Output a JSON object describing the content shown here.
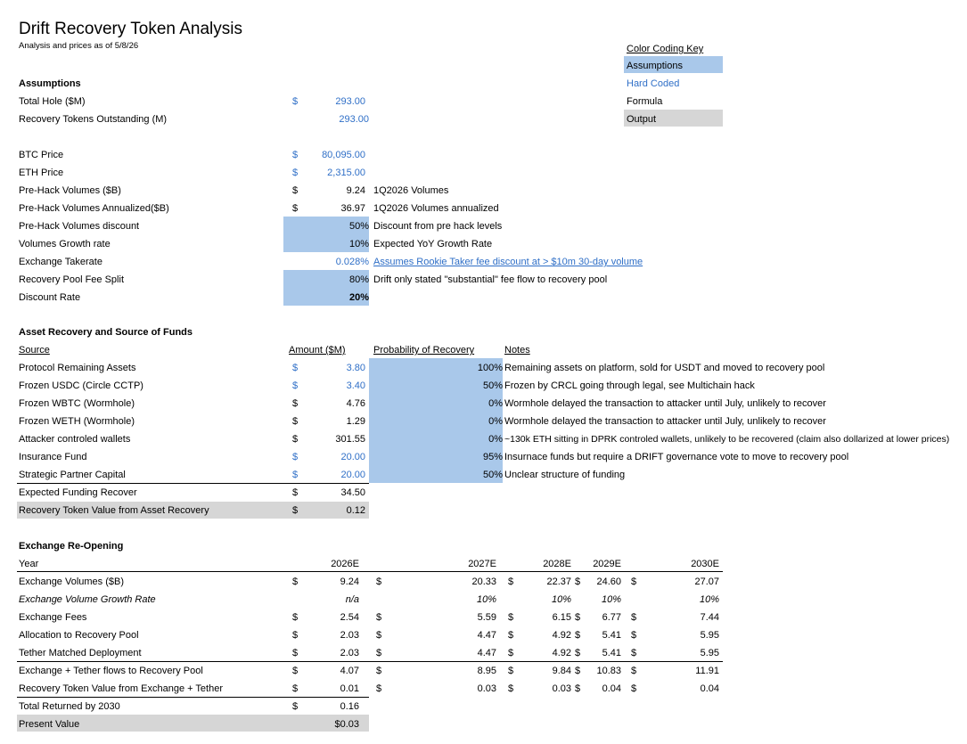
{
  "header": {
    "title": "Drift Recovery Token Analysis",
    "subtitle": "Analysis and prices as of 5/8/26"
  },
  "key": {
    "title": "Color Coding Key",
    "assumptions": "Assumptions",
    "hardcoded": "Hard Coded",
    "formula": "Formula",
    "output": "Output",
    "colors": {
      "assumption_fill": "#a9c8ea",
      "hardcoded_text": "#2f6fc7",
      "output_fill": "#d6d6d6"
    }
  },
  "assumptions": {
    "heading": "Assumptions",
    "rows": [
      {
        "label": "Total Hole ($M)",
        "cur": "$",
        "value": "293.00",
        "note": ""
      },
      {
        "label": "Recovery Tokens Outstanding (M)",
        "cur": "",
        "value": "293.00",
        "note": ""
      },
      {
        "label": "BTC Price",
        "cur": "$",
        "value": "80,095.00",
        "note": ""
      },
      {
        "label": "ETH Price",
        "cur": "$",
        "value": "2,315.00",
        "note": ""
      },
      {
        "label": "Pre-Hack Volumes ($B)",
        "cur": "$",
        "value": "9.24",
        "note": "1Q2026 Volumes"
      },
      {
        "label": "Pre-Hack Volumes Annualized($B)",
        "cur": "$",
        "value": "36.97",
        "note": "1Q2026 Volumes annualized"
      },
      {
        "label": "Pre-Hack Volumes discount",
        "cur": "",
        "value": "50%",
        "note": "Discount from pre hack levels"
      },
      {
        "label": "Volumes Growth rate",
        "cur": "",
        "value": "10%",
        "note": "Expected YoY Growth Rate"
      },
      {
        "label": "Exchange Takerate",
        "cur": "",
        "value": "0.028%",
        "note": "Assumes Rookie Taker fee discount at > $10m 30-day volume"
      },
      {
        "label": "Recovery Pool Fee Split",
        "cur": "",
        "value": "80%",
        "note": "Drift only stated \"substantial\" fee flow to recovery pool"
      },
      {
        "label": "Discount Rate",
        "cur": "",
        "value": "20%",
        "note": ""
      }
    ]
  },
  "recovery": {
    "heading": "Asset Recovery and Source of Funds",
    "columns": {
      "source": "Source",
      "amount": "Amount ($M)",
      "prob": "Probability of Recovery",
      "notes": "Notes"
    },
    "rows": [
      {
        "source": "Protocol Remaining Assets",
        "cur": "$",
        "amount": "3.80",
        "prob": "100%",
        "note": "Remaining assets on platform, sold for USDT and moved to recovery pool"
      },
      {
        "source": "Frozen USDC (Circle CCTP)",
        "cur": "$",
        "amount": "3.40",
        "prob": "50%",
        "note": "Frozen by CRCL going through legal, see Multichain hack"
      },
      {
        "source": "Frozen WBTC (Wormhole)",
        "cur": "$",
        "amount": "4.76",
        "prob": "0%",
        "note": "Wormhole delayed the transaction to attacker until July, unlikely to recover"
      },
      {
        "source": "Frozen WETH (Wormhole)",
        "cur": "$",
        "amount": "1.29",
        "prob": "0%",
        "note": "Wormhole delayed the transaction to attacker until July, unlikely to recover"
      },
      {
        "source": "Attacker controled wallets",
        "cur": "$",
        "amount": "301.55",
        "prob": "0%",
        "note": "~130k ETH sitting in DPRK controled wallets, unlikely to be recovered (claim also dollarized at lower prices)"
      },
      {
        "source": "Insurance Fund",
        "cur": "$",
        "amount": "20.00",
        "prob": "95%",
        "note": "Insurnace funds but require a DRIFT governance vote to move to recovery pool"
      },
      {
        "source": "Strategic Partner Capital",
        "cur": "$",
        "amount": "20.00",
        "prob": "50%",
        "note": "Unclear structure of funding"
      }
    ],
    "expected": {
      "label": "Expected Funding Recover",
      "cur": "$",
      "value": "34.50"
    },
    "token_value": {
      "label": "Recovery Token Value from Asset Recovery",
      "cur": "$",
      "value": "0.12"
    }
  },
  "exchange": {
    "heading": "Exchange Re-Opening",
    "year_label": "Year",
    "years": [
      "2026E",
      "2027E",
      "2028E",
      "2029E",
      "2030E"
    ],
    "rows": [
      {
        "label": "Exchange Volumes ($B)",
        "italic": false,
        "currency": true,
        "values": [
          "9.24",
          "20.33",
          "22.37",
          "24.60",
          "27.07"
        ]
      },
      {
        "label": "Exchange Volume Growth Rate",
        "italic": true,
        "currency": false,
        "values": [
          "n/a",
          "10%",
          "10%",
          "10%",
          "10%"
        ]
      },
      {
        "label": "Exchange Fees",
        "italic": false,
        "currency": true,
        "values": [
          "2.54",
          "5.59",
          "6.15",
          "6.77",
          "7.44"
        ]
      },
      {
        "label": "Allocation to Recovery Pool",
        "italic": false,
        "currency": true,
        "values": [
          "2.03",
          "4.47",
          "4.92",
          "5.41",
          "5.95"
        ]
      },
      {
        "label": "Tether Matched Deployment",
        "italic": false,
        "currency": true,
        "values": [
          "2.03",
          "4.47",
          "4.92",
          "5.41",
          "5.95"
        ]
      },
      {
        "label": "Exchange + Tether flows to Recovery Pool",
        "italic": false,
        "currency": true,
        "values": [
          "4.07",
          "8.95",
          "9.84",
          "10.83",
          "11.91"
        ]
      },
      {
        "label": "Recovery Token Value from Exchange + Tether",
        "italic": false,
        "currency": true,
        "values": [
          "0.01",
          "0.03",
          "0.03",
          "0.04",
          "0.04"
        ]
      }
    ],
    "total": {
      "label": "Total Returned by 2030",
      "cur": "$",
      "value": "0.16"
    },
    "pv": {
      "label": "Present Value",
      "value": "$0.03"
    }
  }
}
